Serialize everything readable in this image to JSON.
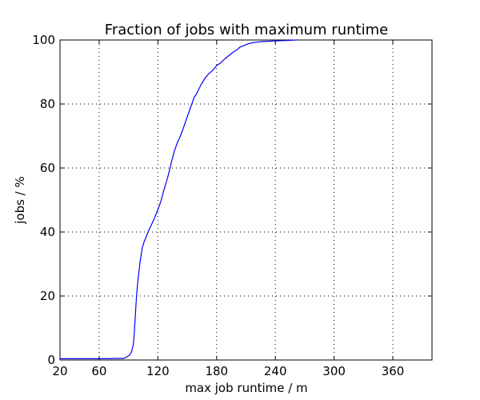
{
  "chart_data": {
    "type": "line",
    "title": "Fraction of jobs with maximum runtime",
    "xlabel": "max job runtime / m",
    "ylabel": "jobs / %",
    "xlim": [
      20,
      400
    ],
    "ylim": [
      0,
      100
    ],
    "xticks": [
      20,
      60,
      120,
      180,
      240,
      300,
      360
    ],
    "yticks": [
      0,
      20,
      40,
      60,
      80,
      100
    ],
    "grid": true,
    "line_color": "#0000ff",
    "series": [
      {
        "x": [
          20,
          60,
          85,
          88,
          91,
          93,
          95,
          96,
          97,
          98,
          99,
          100,
          102,
          104,
          106,
          108,
          110,
          113,
          116,
          120,
          123,
          126,
          130,
          134,
          137,
          140,
          143,
          146,
          150,
          154,
          157,
          160,
          164,
          168,
          172,
          176,
          180,
          184,
          188,
          192,
          196,
          200,
          204,
          208,
          212,
          216,
          220,
          226,
          232,
          240,
          250,
          262
        ],
        "y": [
          0.4,
          0.4,
          0.5,
          0.9,
          1.5,
          2.5,
          5,
          9,
          14,
          19,
          23,
          26,
          31,
          35,
          37,
          38.5,
          40,
          42,
          44,
          47,
          49.5,
          53,
          57,
          62,
          65.5,
          68,
          70,
          72.5,
          76,
          79.5,
          82,
          83.5,
          86,
          88,
          89.5,
          90.5,
          92,
          92.8,
          94,
          95,
          96,
          96.8,
          97.8,
          98.3,
          98.8,
          99.1,
          99.3,
          99.5,
          99.6,
          99.7,
          99.85,
          100
        ]
      }
    ]
  }
}
